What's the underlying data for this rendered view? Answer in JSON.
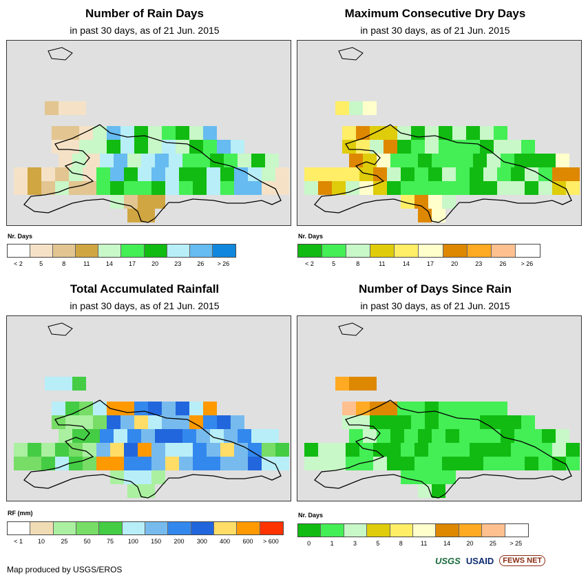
{
  "panels": [
    {
      "id": "rain_days",
      "title": "Number of Rain Days",
      "subtitle": "in past 30 days, as of 21 Jun. 2015",
      "legend": {
        "title": "Nr. Days",
        "labels": [
          "< 2",
          "5",
          "8",
          "11",
          "14",
          "17",
          "20",
          "23",
          "26",
          "> 26"
        ],
        "colors": [
          "#ffffff",
          "#f5e2c6",
          "#e2c590",
          "#d0a642",
          "#c8f7c8",
          "#44ee55",
          "#11bb11",
          "#b8eef8",
          "#66bbf0",
          "#1188dd"
        ]
      }
    },
    {
      "id": "max_dry_days",
      "title": "Maximum Consecutive Dry Days",
      "subtitle": "in past 30 days, as of 21 Jun. 2015",
      "legend": {
        "title": "Nr. Days",
        "labels": [
          "< 2",
          "5",
          "8",
          "11",
          "14",
          "17",
          "20",
          "23",
          "26",
          "> 26"
        ],
        "colors": [
          "#11bb11",
          "#44ee55",
          "#c8f7c8",
          "#dfcc0a",
          "#ffee66",
          "#ffffcc",
          "#dd8800",
          "#ffaa22",
          "#ffc090",
          "#ffffff"
        ]
      }
    },
    {
      "id": "total_rainfall",
      "title": "Total Accumulated Rainfall",
      "subtitle": "in past 30 days, as of 21 Jun. 2015",
      "legend": {
        "title": "RF (mm)",
        "labels": [
          "< 1",
          "10",
          "25",
          "50",
          "75",
          "100",
          "150",
          "200",
          "300",
          "400",
          "600",
          "> 600"
        ],
        "colors": [
          "#ffffff",
          "#f0dcb4",
          "#aaf0a0",
          "#77dd66",
          "#44cc44",
          "#b8eef8",
          "#77bbee",
          "#3388ee",
          "#2266dd",
          "#ffdd66",
          "#ff9900",
          "#ff3300"
        ]
      }
    },
    {
      "id": "days_since_rain",
      "title": "Number of Days Since Rain",
      "subtitle": "in past 30 days, as of 21 Jun. 2015",
      "legend": {
        "title": "Nr. Days",
        "labels": [
          "0",
          "1",
          "3",
          "5",
          "8",
          "11",
          "14",
          "20",
          "25",
          "> 25"
        ],
        "colors": [
          "#11bb11",
          "#44ee55",
          "#c8f7c8",
          "#dfcc0a",
          "#ffee66",
          "#ffffcc",
          "#dd8800",
          "#ffaa22",
          "#ffc090",
          "#ffffff"
        ]
      }
    }
  ],
  "footer": {
    "credit": "Map produced by USGS/EROS",
    "logos": [
      "USGS",
      "USAID",
      "FEWS NET"
    ]
  }
}
